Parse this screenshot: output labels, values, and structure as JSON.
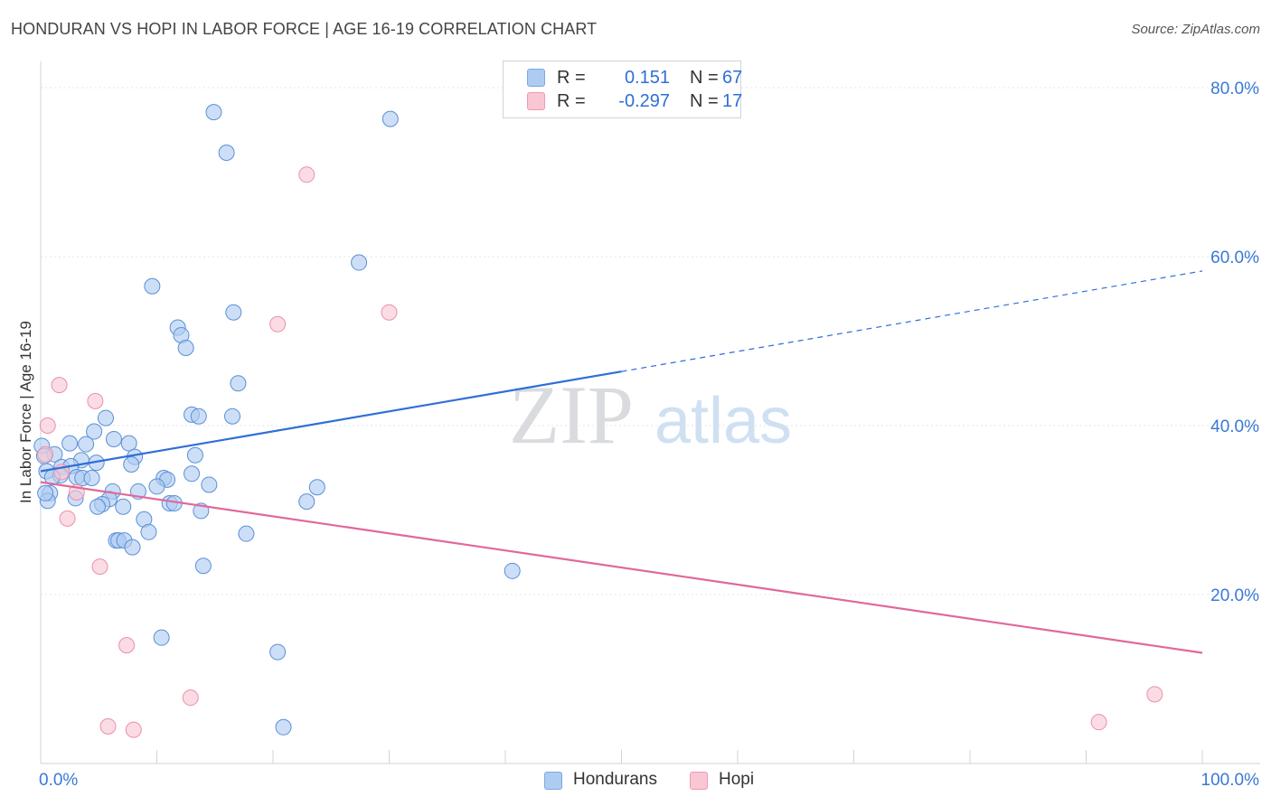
{
  "header": {
    "title": "HONDURAN VS HOPI IN LABOR FORCE | AGE 16-19 CORRELATION CHART",
    "source": "Source: ZipAtlas.com"
  },
  "watermark": {
    "zip": "ZIP",
    "atlas": "atlas"
  },
  "legend": {
    "rows": [
      {
        "r_label": "R =",
        "r_value": "0.151",
        "n_label": "N =",
        "n_value": "67",
        "color": "#aecbf2",
        "border": "#7fa8e0"
      },
      {
        "r_label": "R =",
        "r_value": "-0.297",
        "n_label": "N =",
        "n_value": "17",
        "color": "#f9c6d4",
        "border": "#ee9ab2"
      }
    ]
  },
  "bottom_legend": {
    "items": [
      {
        "label": "Hondurans",
        "color": "#aecbf2",
        "border": "#7fa8e0"
      },
      {
        "label": "Hopi",
        "color": "#f9c6d4",
        "border": "#ee9ab2"
      }
    ]
  },
  "chart_data": {
    "type": "scatter",
    "ylabel": "In Labor Force | Age 16-19",
    "xlabel": "",
    "xlim": [
      0,
      100
    ],
    "ylim": [
      0,
      80
    ],
    "x_ticks": [
      {
        "value": 0,
        "label": "0.0%"
      },
      {
        "value": 100,
        "label": "100.0%"
      }
    ],
    "y_ticks": [
      {
        "value": 20,
        "label": "20.0%"
      },
      {
        "value": 40,
        "label": "40.0%"
      },
      {
        "value": 60,
        "label": "60.0%"
      },
      {
        "value": 80,
        "label": "80.0%"
      }
    ],
    "grid": true,
    "colors": {
      "blue_fill": "#aecbf2",
      "blue_stroke": "#5a8fd6",
      "blue_line": "#2f6fd6",
      "pink_fill": "#f9c6d4",
      "pink_stroke": "#ec8fa9",
      "pink_line": "#e0689a"
    },
    "series": [
      {
        "name": "Hondurans",
        "points": [
          [
            14.9,
            77.1
          ],
          [
            30.1,
            76.3
          ],
          [
            16.0,
            72.3
          ],
          [
            27.4,
            59.3
          ],
          [
            9.6,
            56.5
          ],
          [
            16.6,
            53.4
          ],
          [
            11.8,
            51.6
          ],
          [
            12.1,
            50.7
          ],
          [
            12.5,
            49.2
          ],
          [
            17.0,
            45.0
          ],
          [
            5.6,
            40.9
          ],
          [
            13.0,
            41.3
          ],
          [
            13.6,
            41.1
          ],
          [
            16.5,
            41.1
          ],
          [
            4.6,
            39.3
          ],
          [
            6.3,
            38.4
          ],
          [
            2.5,
            37.9
          ],
          [
            3.9,
            37.8
          ],
          [
            7.6,
            37.9
          ],
          [
            1.2,
            36.6
          ],
          [
            3.5,
            35.9
          ],
          [
            8.1,
            36.3
          ],
          [
            13.3,
            36.5
          ],
          [
            1.8,
            35.1
          ],
          [
            2.6,
            35.2
          ],
          [
            4.8,
            35.6
          ],
          [
            7.8,
            35.4
          ],
          [
            0.5,
            34.6
          ],
          [
            1.7,
            34.1
          ],
          [
            3.1,
            33.9
          ],
          [
            3.6,
            33.8
          ],
          [
            4.4,
            33.8
          ],
          [
            10.6,
            33.8
          ],
          [
            10.9,
            33.6
          ],
          [
            13.0,
            34.3
          ],
          [
            14.5,
            33.0
          ],
          [
            23.8,
            32.7
          ],
          [
            10.0,
            32.8
          ],
          [
            0.8,
            32.0
          ],
          [
            6.2,
            32.2
          ],
          [
            8.4,
            32.2
          ],
          [
            5.9,
            31.3
          ],
          [
            3.0,
            31.4
          ],
          [
            22.9,
            31.0
          ],
          [
            0.6,
            31.1
          ],
          [
            11.1,
            30.8
          ],
          [
            11.5,
            30.8
          ],
          [
            5.3,
            30.7
          ],
          [
            4.9,
            30.4
          ],
          [
            7.1,
            30.4
          ],
          [
            13.8,
            29.9
          ],
          [
            8.9,
            28.9
          ],
          [
            9.3,
            27.4
          ],
          [
            17.7,
            27.2
          ],
          [
            6.5,
            26.4
          ],
          [
            6.7,
            26.4
          ],
          [
            7.2,
            26.4
          ],
          [
            7.9,
            25.6
          ],
          [
            14.0,
            23.4
          ],
          [
            40.6,
            22.8
          ],
          [
            10.4,
            14.9
          ],
          [
            20.4,
            13.2
          ],
          [
            20.9,
            4.3
          ],
          [
            0.1,
            37.6
          ],
          [
            0.3,
            36.4
          ],
          [
            0.4,
            32.0
          ],
          [
            1.0,
            33.9
          ]
        ]
      },
      {
        "name": "Hopi",
        "points": [
          [
            22.9,
            69.7
          ],
          [
            30.0,
            53.4
          ],
          [
            20.4,
            52.0
          ],
          [
            1.6,
            44.8
          ],
          [
            4.7,
            42.9
          ],
          [
            0.6,
            40.0
          ],
          [
            0.4,
            36.6
          ],
          [
            1.8,
            34.5
          ],
          [
            3.1,
            32.1
          ],
          [
            2.3,
            29.0
          ],
          [
            5.1,
            23.3
          ],
          [
            7.4,
            14.0
          ],
          [
            12.9,
            7.8
          ],
          [
            5.8,
            4.4
          ],
          [
            8.0,
            4.0
          ],
          [
            91.1,
            4.9
          ],
          [
            95.9,
            8.2
          ]
        ]
      }
    ],
    "trend_lines": [
      {
        "series": "Hondurans",
        "from": [
          0,
          34.6
        ],
        "to": [
          50,
          46.4
        ],
        "style": "solid"
      },
      {
        "series": "Hondurans",
        "from": [
          50,
          46.4
        ],
        "to": [
          100,
          58.3
        ],
        "style": "dashed"
      },
      {
        "series": "Hopi",
        "from": [
          0,
          33.3
        ],
        "to": [
          100,
          13.1
        ],
        "style": "solid"
      }
    ]
  }
}
